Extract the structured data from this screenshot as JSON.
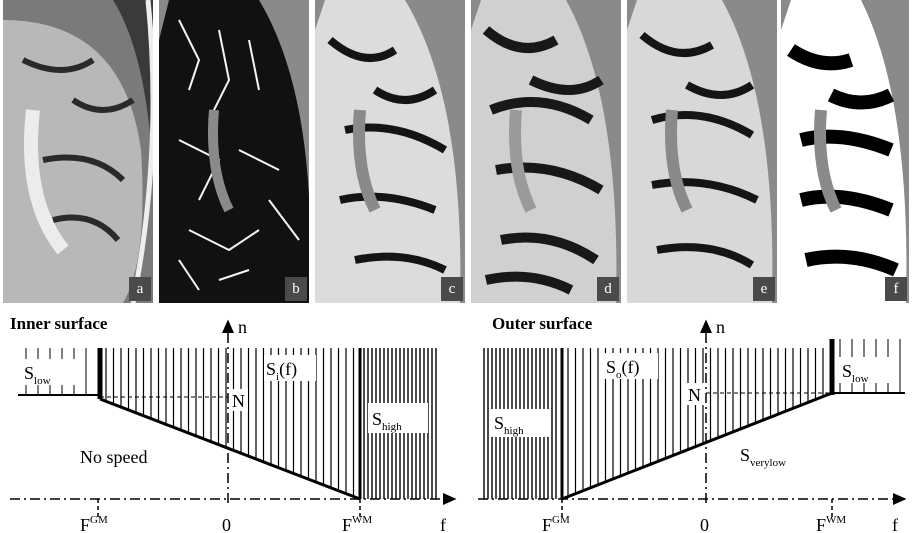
{
  "panels": [
    {
      "label": "a"
    },
    {
      "label": "b"
    },
    {
      "label": "c"
    },
    {
      "label": "d"
    },
    {
      "label": "e"
    },
    {
      "label": "f"
    }
  ],
  "inner": {
    "title": "Inner surface",
    "axis_n": "n",
    "axis_f": "f",
    "s_low": "S",
    "s_low_sub": "low",
    "s_i": "S",
    "s_i_sub": "i",
    "s_i_arg": "(f)",
    "s_high": "S",
    "s_high_sub": "high",
    "n_label": "N",
    "no_speed": "No speed",
    "f_gm": "F",
    "f_gm_sup": "GM",
    "zero": "0",
    "f_wm": "F",
    "f_wm_sup": "WM"
  },
  "outer": {
    "title": "Outer surface",
    "axis_n": "n",
    "axis_f": "f",
    "s_high": "S",
    "s_high_sub": "high",
    "s_o": "S",
    "s_o_sub": "o",
    "s_o_arg": "(f)",
    "s_low": "S",
    "s_low_sub": "low",
    "n_label": "N",
    "s_verylow": "S",
    "s_verylow_sub": "verylow",
    "f_gm": "F",
    "f_gm_sup": "GM",
    "zero": "0",
    "f_wm": "F",
    "f_wm_sup": "WM"
  }
}
